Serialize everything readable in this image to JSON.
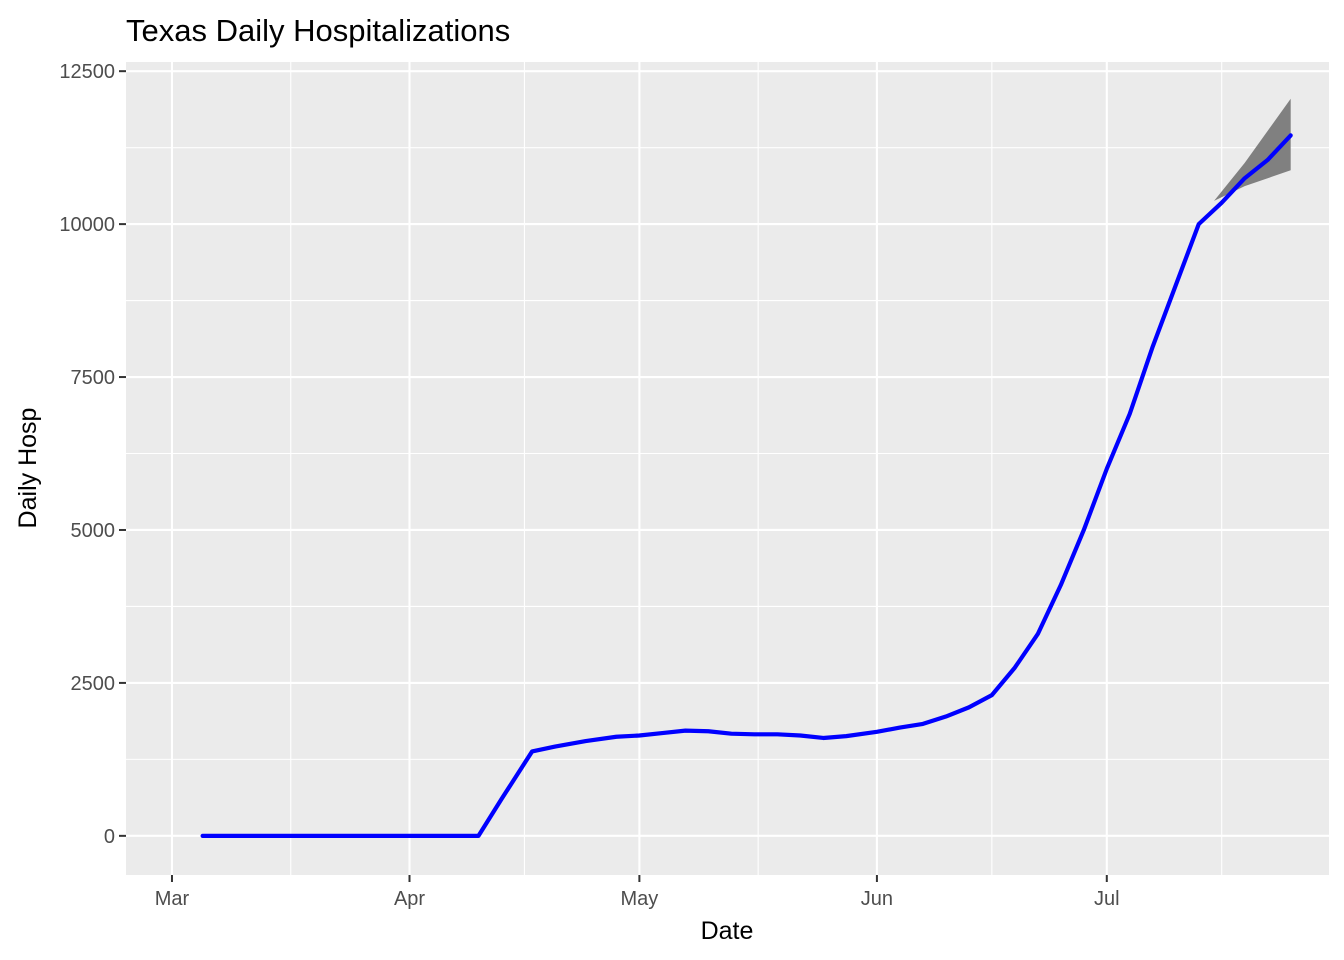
{
  "chart_data": {
    "type": "line",
    "title": "Texas Daily Hospitalizations",
    "xlabel": "Date",
    "ylabel": "Daily Hosp",
    "x_tick_labels": [
      {
        "date": "2020-03-01",
        "label": "Mar"
      },
      {
        "date": "2020-04-01",
        "label": "Apr"
      },
      {
        "date": "2020-05-01",
        "label": "May"
      },
      {
        "date": "2020-06-01",
        "label": "Jun"
      },
      {
        "date": "2020-07-01",
        "label": "Jul"
      }
    ],
    "y_ticks": [
      0,
      2500,
      5000,
      7500,
      10000,
      12500
    ],
    "y_tick_labels": [
      "0",
      "2500",
      "5000",
      "7500",
      "10000",
      "12500"
    ],
    "xlim": [
      "2020-02-24",
      "2020-07-30"
    ],
    "ylim": [
      -640,
      12650
    ],
    "grid": true,
    "colors": {
      "panel": "#ebebeb",
      "grid": "#ffffff",
      "line": "#0000ff",
      "band": "#808080"
    },
    "series": [
      {
        "points": [
          [
            "2020-03-05",
            0
          ],
          [
            "2020-03-15",
            0
          ],
          [
            "2020-03-25",
            0
          ],
          [
            "2020-04-05",
            0
          ],
          [
            "2020-04-10",
            0
          ],
          [
            "2020-04-13",
            600
          ],
          [
            "2020-04-17",
            1380
          ],
          [
            "2020-04-20",
            1460
          ],
          [
            "2020-04-24",
            1550
          ],
          [
            "2020-04-28",
            1620
          ],
          [
            "2020-05-01",
            1640
          ],
          [
            "2020-05-04",
            1680
          ],
          [
            "2020-05-07",
            1720
          ],
          [
            "2020-05-10",
            1710
          ],
          [
            "2020-05-13",
            1670
          ],
          [
            "2020-05-16",
            1660
          ],
          [
            "2020-05-19",
            1660
          ],
          [
            "2020-05-22",
            1640
          ],
          [
            "2020-05-25",
            1600
          ],
          [
            "2020-05-28",
            1630
          ],
          [
            "2020-06-01",
            1700
          ],
          [
            "2020-06-04",
            1770
          ],
          [
            "2020-06-07",
            1830
          ],
          [
            "2020-06-10",
            1950
          ],
          [
            "2020-06-13",
            2100
          ],
          [
            "2020-06-16",
            2300
          ],
          [
            "2020-06-19",
            2750
          ],
          [
            "2020-06-22",
            3300
          ],
          [
            "2020-06-25",
            4100
          ],
          [
            "2020-06-28",
            5000
          ],
          [
            "2020-07-01",
            6000
          ],
          [
            "2020-07-04",
            6900
          ],
          [
            "2020-07-07",
            8000
          ],
          [
            "2020-07-10",
            9000
          ],
          [
            "2020-07-13",
            10000
          ],
          [
            "2020-07-16",
            10350
          ],
          [
            "2020-07-19",
            10750
          ],
          [
            "2020-07-22",
            11050
          ],
          [
            "2020-07-25",
            11450
          ]
        ]
      }
    ],
    "forecast_band": {
      "upper": [
        [
          "2020-07-15",
          10380
        ],
        [
          "2020-07-19",
          11000
        ],
        [
          "2020-07-25",
          12050
        ]
      ],
      "lower": [
        [
          "2020-07-15",
          10380
        ],
        [
          "2020-07-19",
          10620
        ],
        [
          "2020-07-25",
          10880
        ]
      ]
    }
  }
}
